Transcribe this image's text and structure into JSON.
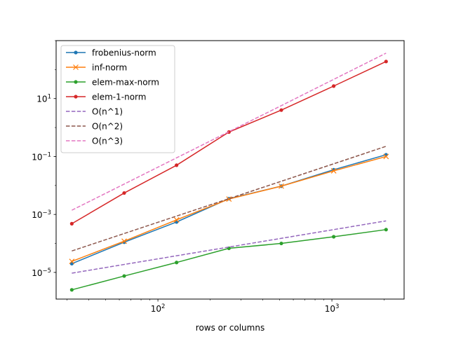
{
  "chart_data": {
    "type": "line",
    "title": "",
    "xlabel": "rows or columns",
    "ylabel": "",
    "xscale": "log",
    "yscale": "log",
    "xlim": [
      26,
      2600
    ],
    "ylim": [
      1.2e-06,
      1000
    ],
    "grid": false,
    "legend_position": "top-left",
    "x_ticks": [
      {
        "value": 100,
        "mant": "10",
        "exp": "2"
      },
      {
        "value": 1000,
        "mant": "10",
        "exp": "3"
      }
    ],
    "y_ticks": [
      {
        "value": 1e-05,
        "mant": "10",
        "exp": "−5"
      },
      {
        "value": 0.001,
        "mant": "10",
        "exp": "−3"
      },
      {
        "value": 0.1,
        "mant": "10",
        "exp": "−1"
      },
      {
        "value": 10,
        "mant": "10",
        "exp": "1"
      }
    ],
    "x": [
      32,
      64,
      128,
      256,
      512,
      1024,
      2048
    ],
    "series": [
      {
        "name": "frobenius-norm",
        "color": "#1f77b4",
        "style": "solid",
        "marker": "dot",
        "values": [
          2e-05,
          0.00011,
          0.00055,
          0.0035,
          0.0095,
          0.035,
          0.115
        ]
      },
      {
        "name": "inf-norm",
        "color": "#ff7f0e",
        "style": "solid",
        "marker": "x",
        "values": [
          2.4e-05,
          0.00012,
          0.00065,
          0.0034,
          0.0095,
          0.032,
          0.1
        ]
      },
      {
        "name": "elem-max-norm",
        "color": "#2ca02c",
        "style": "solid",
        "marker": "dot",
        "values": [
          2.5e-06,
          7.5e-06,
          2.2e-05,
          6.8e-05,
          0.0001,
          0.00017,
          0.0003
        ]
      },
      {
        "name": "elem-1-norm",
        "color": "#d62728",
        "style": "solid",
        "marker": "dot",
        "values": [
          0.00048,
          0.0055,
          0.05,
          0.7,
          4.0,
          27,
          190
        ]
      },
      {
        "name": "O(n^1)",
        "color": "#9467bd",
        "style": "dashed",
        "marker": "none",
        "values": [
          9.4e-06,
          1.88e-05,
          3.75e-05,
          7.5e-05,
          0.00015,
          0.0003,
          0.0006
        ]
      },
      {
        "name": "O(n^2)",
        "color": "#8c564b",
        "style": "dashed",
        "marker": "none",
        "values": [
          5.5e-05,
          0.00022,
          0.00088,
          0.0035,
          0.014,
          0.056,
          0.225
        ]
      },
      {
        "name": "O(n^3)",
        "color": "#e377c2",
        "style": "dashed",
        "marker": "none",
        "values": [
          0.0014,
          0.0112,
          0.09,
          0.72,
          5.7,
          46,
          370
        ]
      }
    ]
  }
}
